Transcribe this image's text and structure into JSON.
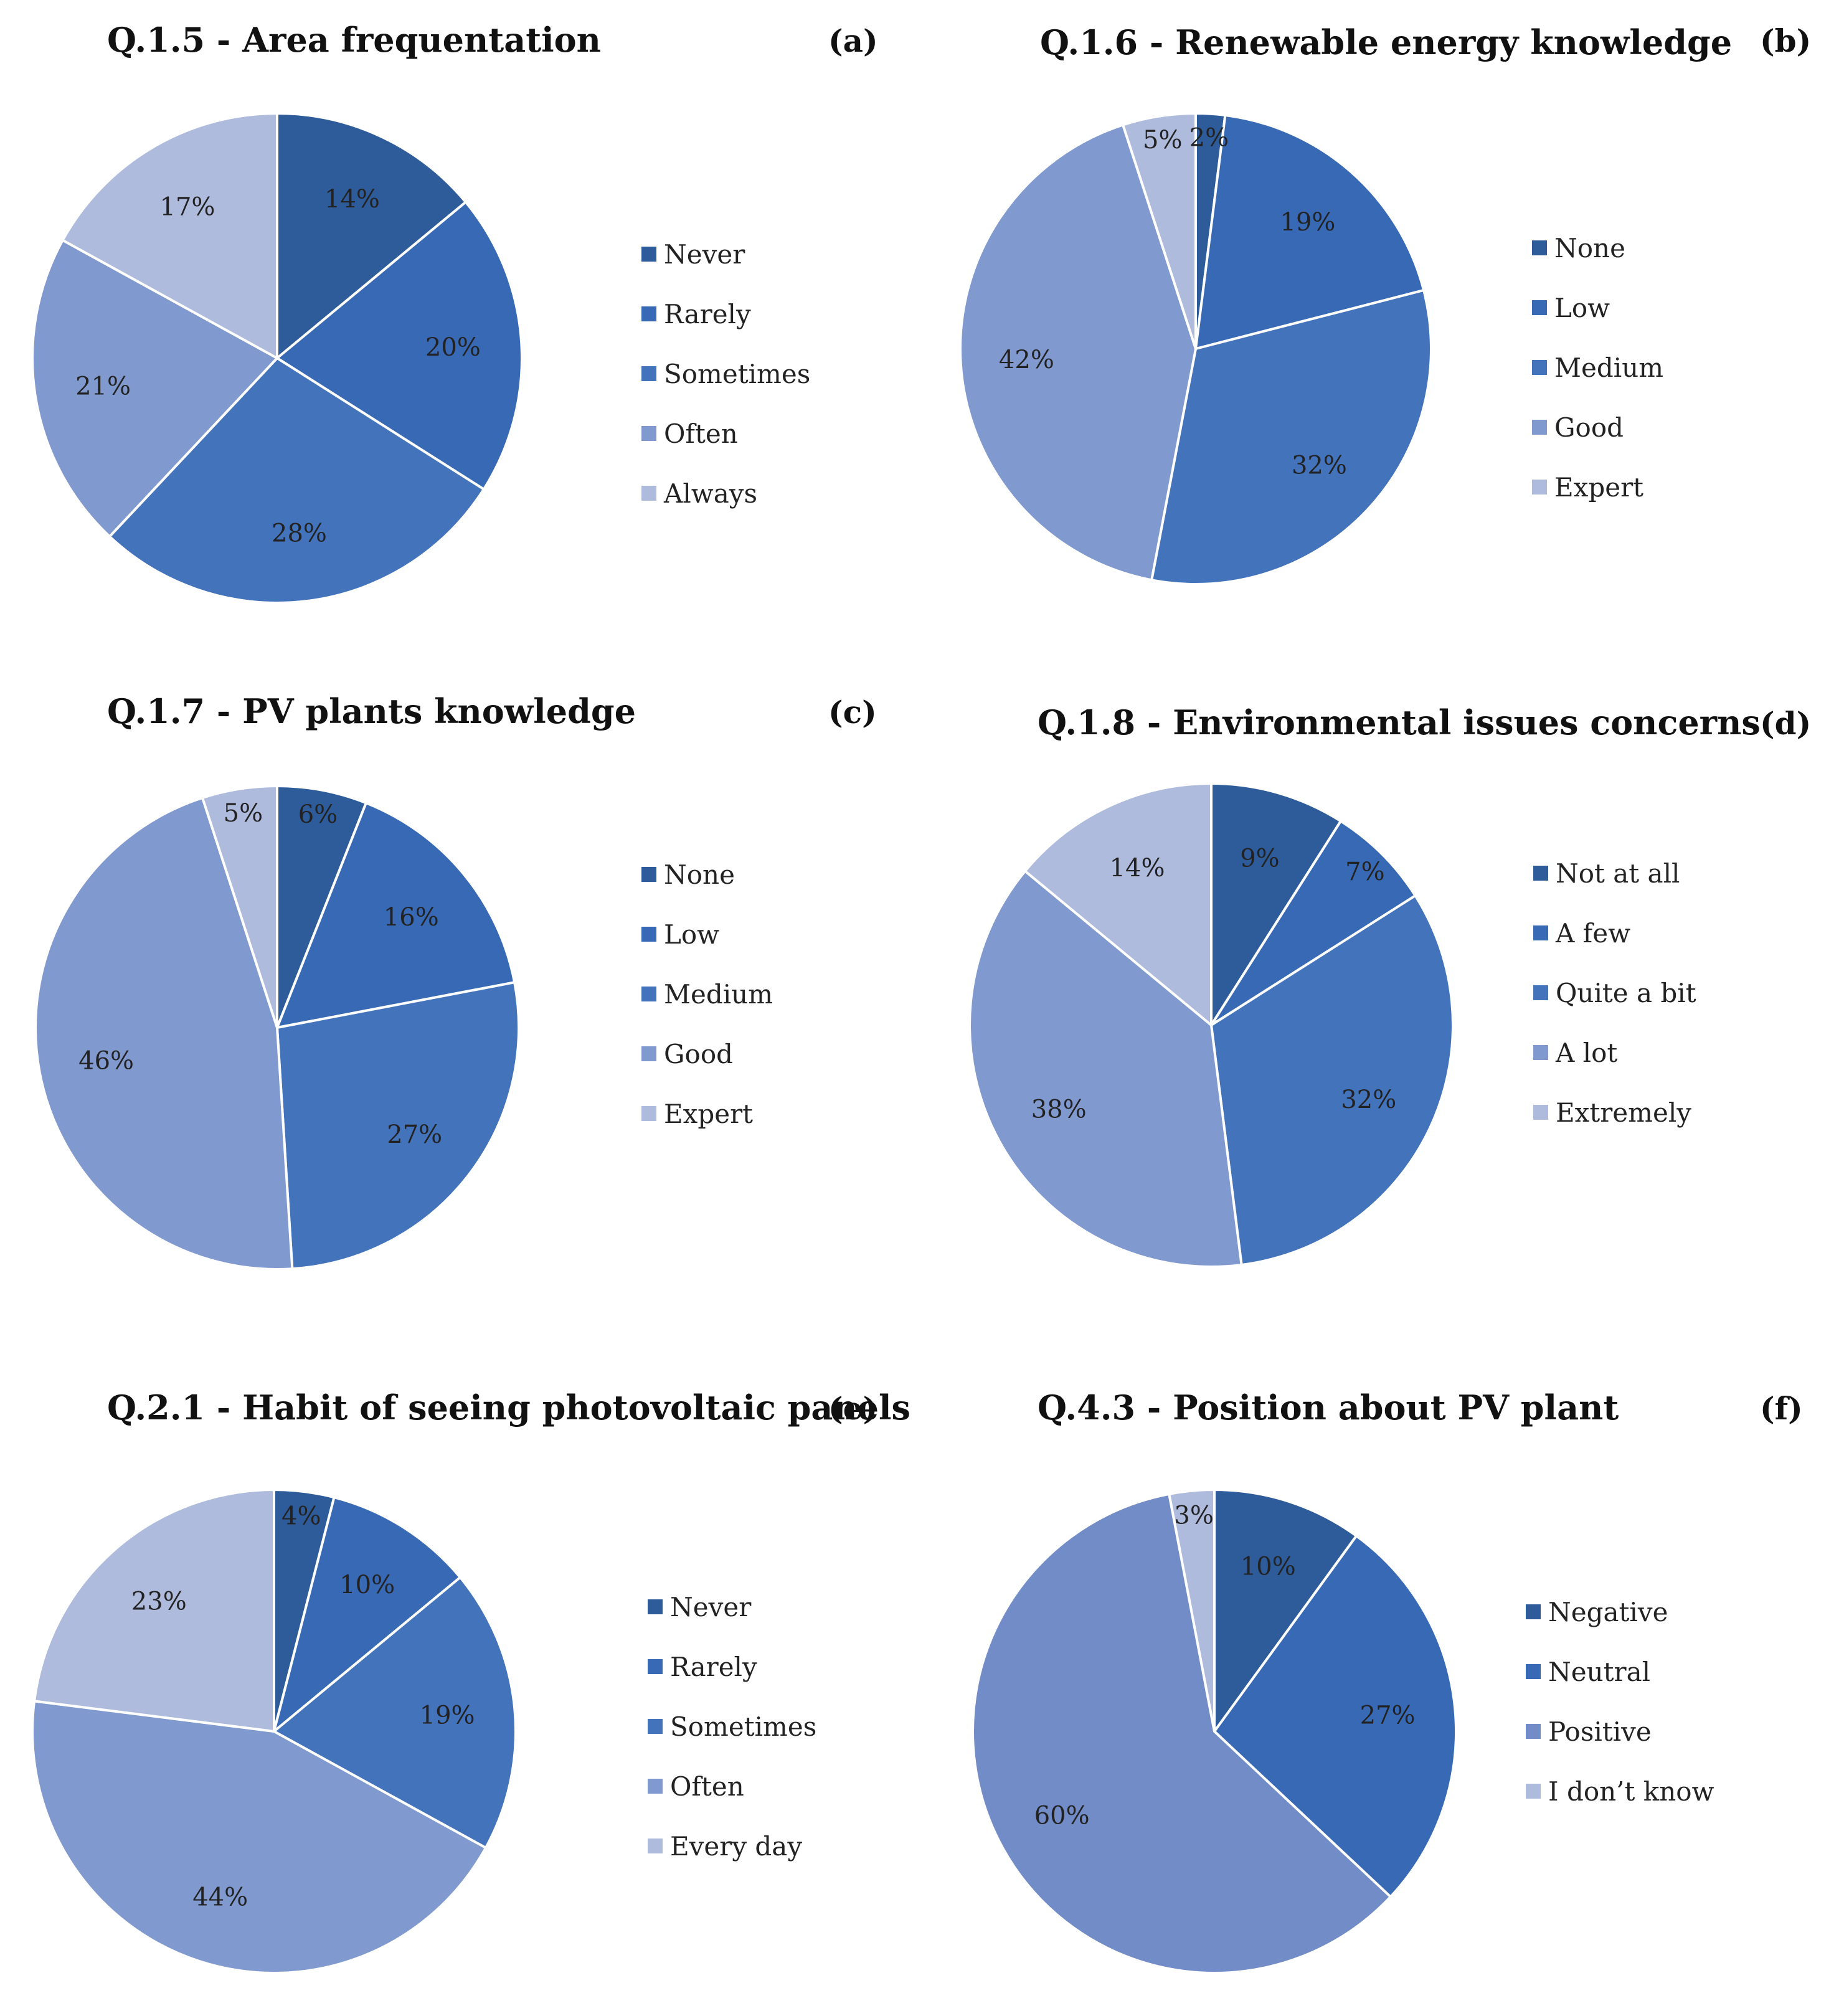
{
  "chart_data": [
    {
      "type": "pie",
      "panel": "(a)",
      "title": "Q.1.5 - Area frequentation",
      "categories": [
        "Never",
        "Rarely",
        "Sometimes",
        "Often",
        "Always"
      ],
      "values": [
        14,
        20,
        28,
        21,
        17
      ],
      "labels": [
        "14%",
        "20%",
        "28%",
        "21%",
        "17%"
      ],
      "colors": [
        "#2e5c9a",
        "#3869b4",
        "#4373bb",
        "#8099cf",
        "#aebbdd"
      ]
    },
    {
      "type": "pie",
      "panel": "(b)",
      "title": "Q.1.6 - Renewable energy knowledge",
      "categories": [
        "None",
        "Low",
        "Medium",
        "Good",
        "Expert"
      ],
      "values": [
        2,
        19,
        32,
        42,
        5
      ],
      "labels": [
        "2%",
        "19%",
        "32%",
        "42%",
        "5%"
      ],
      "colors": [
        "#2e5c9a",
        "#3869b4",
        "#4373bb",
        "#8099cf",
        "#aebbdd"
      ]
    },
    {
      "type": "pie",
      "panel": "(c)",
      "title": "Q.1.7 - PV plants knowledge",
      "categories": [
        "None",
        "Low",
        "Medium",
        "Good",
        "Expert"
      ],
      "values": [
        6,
        16,
        27,
        46,
        5
      ],
      "labels": [
        "6%",
        "16%",
        "27%",
        "46%",
        "5%"
      ],
      "colors": [
        "#2e5c9a",
        "#3869b4",
        "#4373bb",
        "#8099cf",
        "#aebbdd"
      ]
    },
    {
      "type": "pie",
      "panel": "(d)",
      "title": "Q.1.8 - Environmental issues concerns",
      "categories": [
        "Not at all",
        "A few",
        "Quite a bit",
        "A lot",
        "Extremely"
      ],
      "values": [
        9,
        7,
        32,
        38,
        14
      ],
      "labels": [
        "9%",
        "7%",
        "32%",
        "38%",
        "14%"
      ],
      "colors": [
        "#2e5c9a",
        "#3869b4",
        "#4373bb",
        "#8099cf",
        "#aebbdd"
      ]
    },
    {
      "type": "pie",
      "panel": "(e)",
      "title": "Q.2.1 - Habit of seeing photovoltaic panels",
      "categories": [
        "Never",
        "Rarely",
        "Sometimes",
        "Often",
        "Every day"
      ],
      "values": [
        4,
        10,
        19,
        44,
        23
      ],
      "labels": [
        "4%",
        "10%",
        "19%",
        "44%",
        "23%"
      ],
      "colors": [
        "#2e5c9a",
        "#3869b4",
        "#4373bb",
        "#8099cf",
        "#aebbdd"
      ]
    },
    {
      "type": "pie",
      "panel": "(f)",
      "title": "Q.4.3 - Position about PV plant",
      "categories": [
        "Negative",
        "Neutral",
        "Positive",
        "I don’t know"
      ],
      "values": [
        10,
        27,
        60,
        3
      ],
      "labels": [
        "10%",
        "27%",
        "60%",
        "3%"
      ],
      "colors": [
        "#2e5c9a",
        "#3869b4",
        "#728cc7",
        "#aebbdd"
      ]
    }
  ]
}
